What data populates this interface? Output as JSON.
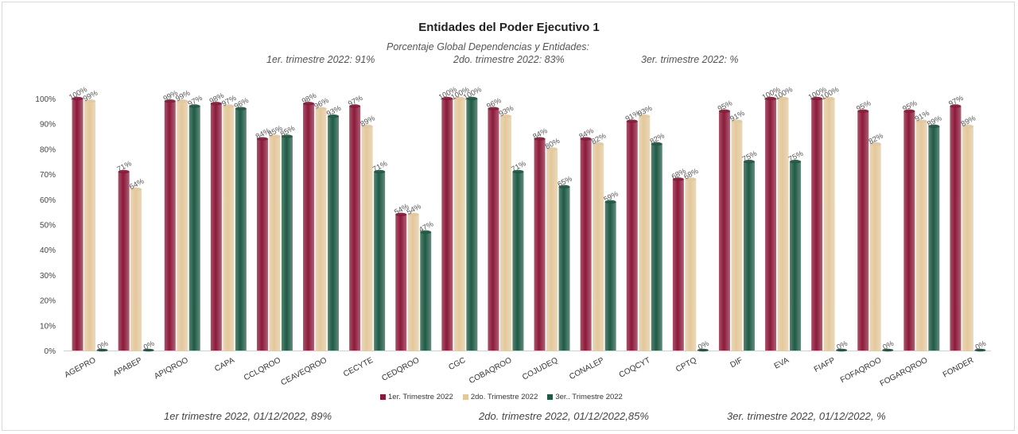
{
  "header": {
    "title": "Entidades del Poder Ejecutivo 1",
    "subtitle": "Porcentaje Global  Dependencias y Entidades:",
    "summary_q1": "1er. trimestre  2022: 91%",
    "summary_q2": "2do. trimestre 2022: 83%",
    "summary_q3": "3er. trimestre  2022: %"
  },
  "footer": {
    "q1": "1er trimestre  2022,  01/12/2022, 89%",
    "q2": "2do. trimestre 2022, 01/12/2022,85%",
    "q3": "3er. trimestre 2022, 01/12/2022, %"
  },
  "colors": {
    "q1": "#8b1a3a",
    "q2": "#e3c89c",
    "q3": "#1f5a45"
  },
  "chart_data": {
    "type": "bar",
    "title": "Entidades del Poder Ejecutivo 1",
    "categories": [
      "AGEPRO",
      "APABEP",
      "APIQROO",
      "CAPA",
      "CCLQROO",
      "CEAVEQROO",
      "CECYTE",
      "CEDQROO",
      "CGC",
      "COBAQROO",
      "COJUDEQ",
      "CONALEP",
      "COQCYT",
      "CPTQ",
      "DIF",
      "EVA",
      "FIAFP",
      "FOFAQROO",
      "FOGARQROO",
      "FONDER"
    ],
    "series": [
      {
        "name": "1er. Trimestre 2022",
        "values": [
          100,
          71,
          99,
          98,
          84,
          98,
          97,
          54,
          100,
          96,
          84,
          84,
          91,
          68,
          95,
          100,
          100,
          95,
          95,
          97
        ],
        "labels": [
          "100%",
          "71%",
          "99%",
          "98%",
          "84%",
          "98%",
          "97%",
          "54%",
          "100%",
          "96%",
          "84%",
          "84%",
          "91%",
          "68%",
          "95%",
          "100%",
          "100%",
          "95%",
          "95%",
          "97%"
        ]
      },
      {
        "name": "2do. Trimestre 2022",
        "values": [
          99,
          64,
          99,
          97,
          85,
          96,
          89,
          54,
          100,
          93,
          80,
          82,
          93,
          68,
          91,
          100,
          100,
          82,
          91,
          89
        ],
        "labels": [
          "99%",
          "64%",
          "99%",
          "97%",
          "85%",
          "96%",
          "89%",
          "54%",
          "100%",
          "93%",
          "80%",
          "82%",
          "93%",
          "68%",
          "91%",
          "100%",
          "100%",
          "82%",
          "91%",
          "89%"
        ]
      },
      {
        "name": "3er.. Trimestre 2022",
        "values": [
          0,
          0,
          97,
          96,
          85,
          93,
          71,
          47,
          100,
          71,
          65,
          59,
          82,
          0,
          75,
          75,
          0,
          0,
          89,
          0
        ],
        "labels": [
          "0%",
          "0%",
          "97%",
          "96%",
          "85%",
          "93%",
          "71%",
          "47%",
          "100%",
          "71%",
          "65%",
          "59%",
          "82%",
          "0%",
          "75%",
          "75%",
          "0%",
          "0%",
          "89%",
          "0%"
        ]
      }
    ],
    "ylim": [
      0,
      100
    ],
    "yticks": [
      "0%",
      "10%",
      "20%",
      "30%",
      "40%",
      "50%",
      "60%",
      "70%",
      "80%",
      "90%",
      "100%"
    ],
    "legend": "bottom",
    "grid": false
  }
}
